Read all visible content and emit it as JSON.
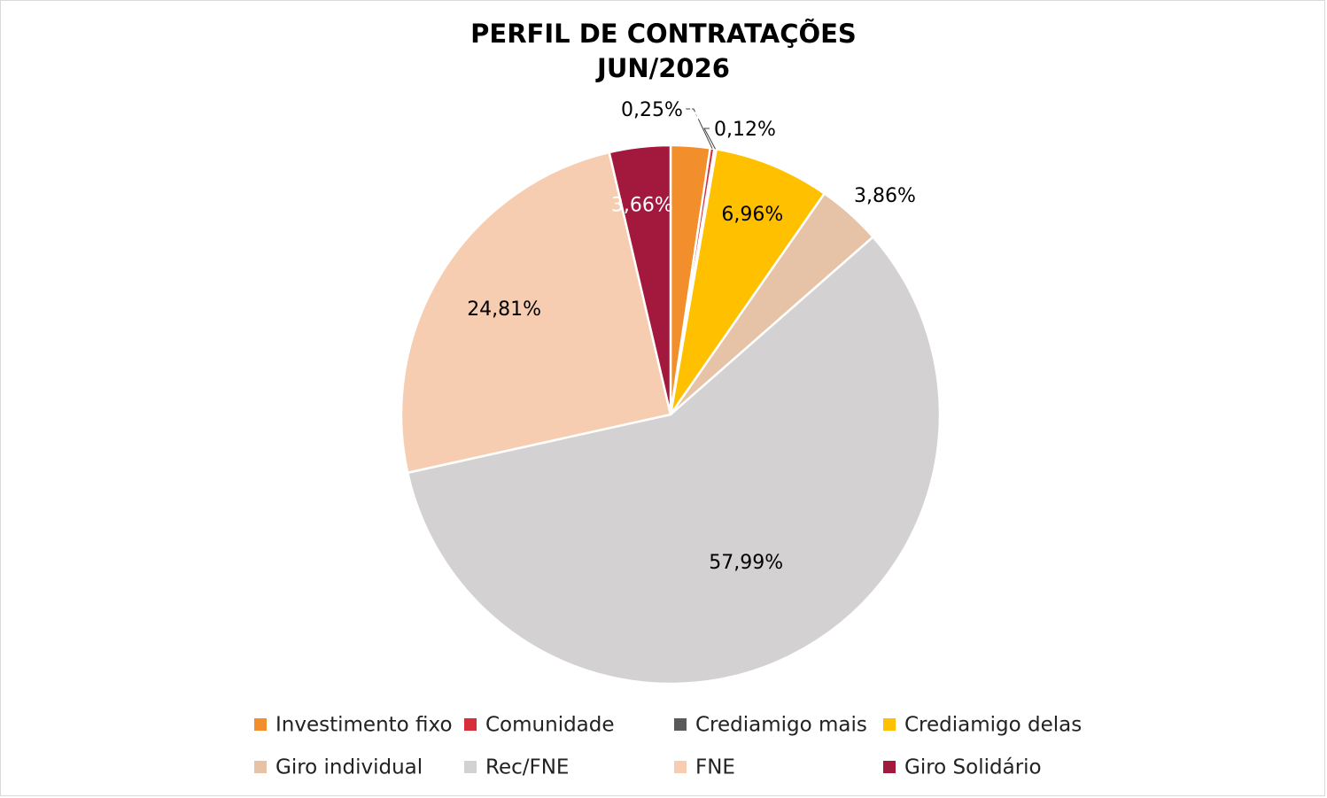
{
  "chart_data": {
    "type": "pie",
    "title": "PERFIL DE CONTRATAÇÕES",
    "subtitle": "JUN/2026",
    "legend_position": "bottom",
    "slices": [
      {
        "name": "Investimento fixo",
        "value": 2.35,
        "label": "2,35%",
        "color": "#F28E2B",
        "label_color": "#ffffff"
      },
      {
        "name": "Comunidade",
        "value": 0.25,
        "label": "0,25%",
        "color": "#D62F3B",
        "label_color": "#000000"
      },
      {
        "name": "Crediamigo mais",
        "value": 0.12,
        "label": "0,12%",
        "color": "#5A5A5A",
        "label_color": "#000000"
      },
      {
        "name": "Crediamigo delas",
        "value": 6.96,
        "label": "6,96%",
        "color": "#FFC000",
        "label_color": "#000000"
      },
      {
        "name": "Giro individual",
        "value": 3.86,
        "label": "3,86%",
        "color": "#E6C2A6",
        "label_color": "#000000"
      },
      {
        "name": "Rec/FNE",
        "value": 57.99,
        "label": "57,99%",
        "color": "#D3D1D1",
        "label_color": "#000000"
      },
      {
        "name": "FNE",
        "value": 24.81,
        "label": "24,81%",
        "color": "#F6CDB0",
        "label_color": "#000000"
      },
      {
        "name": "Giro Solidário",
        "value": 3.66,
        "label": "3,66%",
        "color": "#A3193D",
        "label_color": "#ffffff"
      }
    ]
  }
}
